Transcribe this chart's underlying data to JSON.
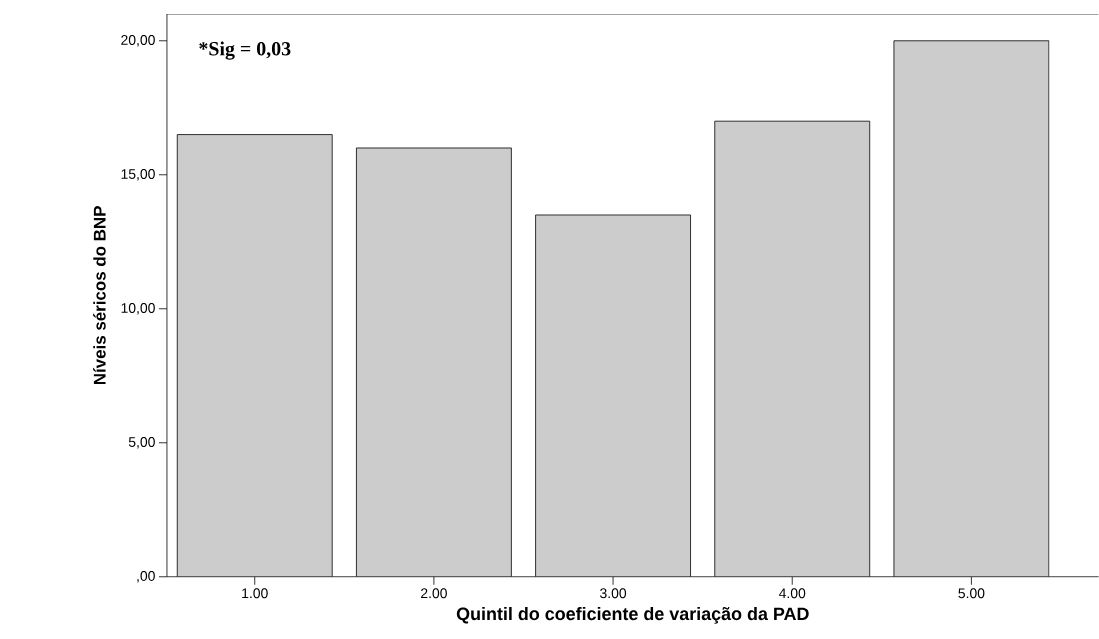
{
  "chart_data": {
    "type": "bar",
    "xlabel": "Quintil do coeficiente de variação da PAD",
    "ylabel": "Níveis séricos do BNP",
    "categories": [
      "1.00",
      "2.00",
      "3.00",
      "4.00",
      "5.00"
    ],
    "values": [
      16.5,
      16.0,
      13.5,
      17.0,
      20.0
    ],
    "color": "#cccccc",
    "ylim": [
      0,
      21
    ],
    "yticks": [
      {
        "value": 0,
        "label": ",00"
      },
      {
        "value": 5,
        "label": "5,00"
      },
      {
        "value": 10,
        "label": "10,00"
      },
      {
        "value": 15,
        "label": "15,00"
      },
      {
        "value": 20,
        "label": "20,00"
      }
    ],
    "grid": false,
    "annotations": [
      "*Sig = 0,03"
    ]
  }
}
